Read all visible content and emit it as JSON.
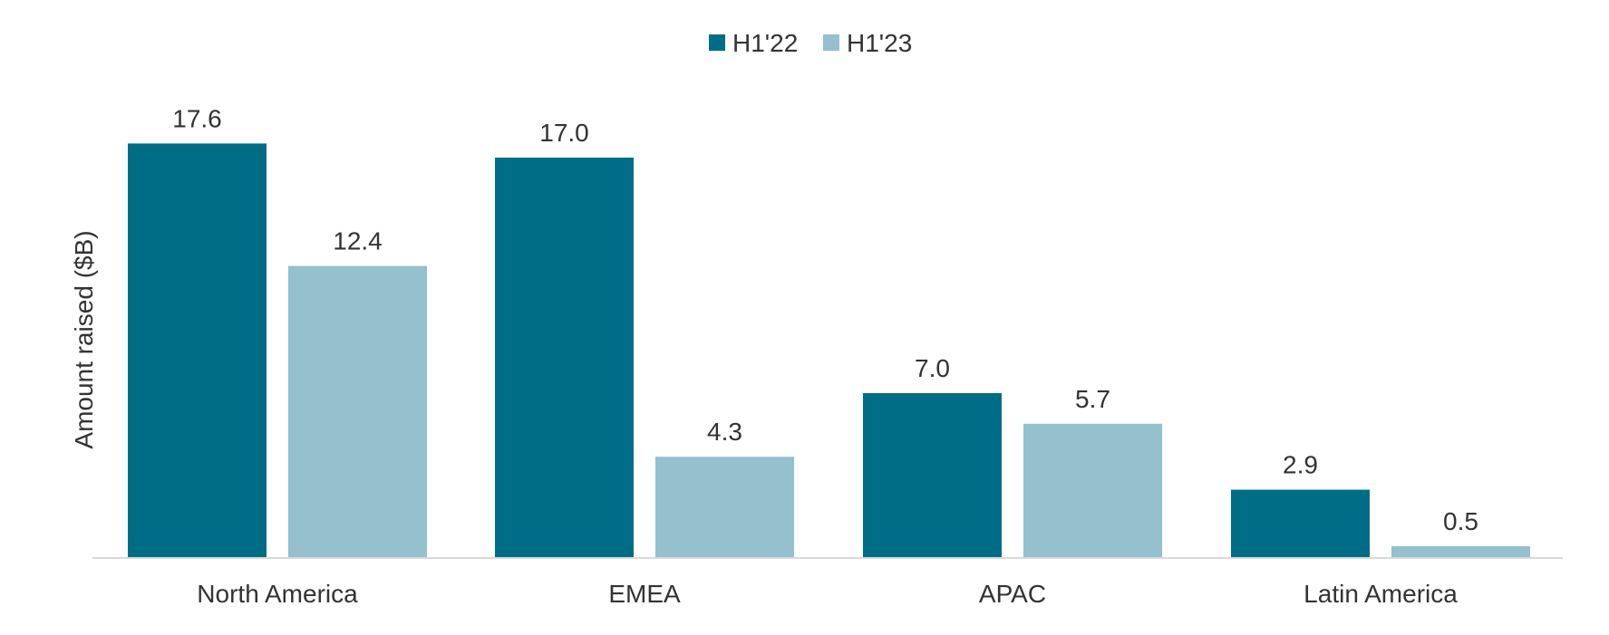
{
  "chart_data": {
    "type": "bar",
    "categories": [
      "North America",
      "EMEA",
      "APAC",
      "Latin America"
    ],
    "series": [
      {
        "name": "H1'22",
        "values": [
          17.6,
          17.0,
          7.0,
          2.9
        ],
        "value_labels": [
          "17.6",
          "17.0",
          "7.0",
          "2.9"
        ],
        "color": "#006d87"
      },
      {
        "name": "H1'23",
        "values": [
          12.4,
          4.3,
          5.7,
          0.5
        ],
        "value_labels": [
          "12.4",
          "4.3",
          "5.7",
          "0.5"
        ],
        "color": "#95c0cd"
      }
    ],
    "ylabel": "Amount raised ($B)",
    "ylim": [
      0,
      20
    ],
    "grid": false,
    "legend_position": "top-center",
    "axis_color": "#d9d9d9"
  }
}
